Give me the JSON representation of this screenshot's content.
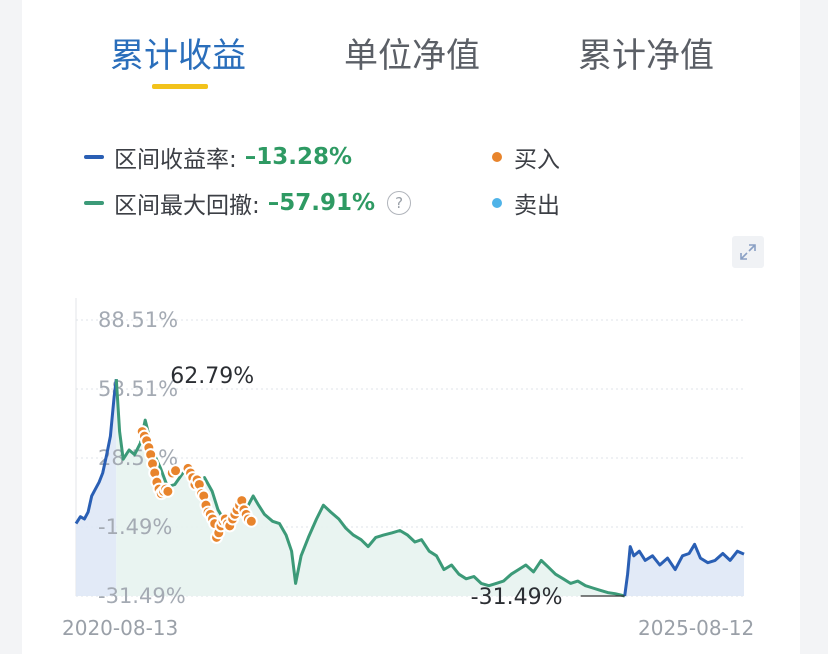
{
  "tabs": [
    {
      "label": "累计收益",
      "active": true
    },
    {
      "label": "单位净值",
      "active": false
    },
    {
      "label": "累计净值",
      "active": false
    }
  ],
  "legend": {
    "return_label": "区间收益率:",
    "return_value": "–13.28%",
    "drawdown_label": "区间最大回撤:",
    "drawdown_value": "–57.91%",
    "help_glyph": "?",
    "buy_label": "买入",
    "sell_label": "卖出"
  },
  "colors": {
    "return_line": "#2a5fb4",
    "drawdown_line": "#3c9a78",
    "return_fill": "#dfe8f6",
    "drawdown_fill": "#e7f3ef",
    "buy": "#e8842c",
    "sell": "#4fb3e8",
    "active_tab": "#2a6ebb",
    "underline": "#f2c21b"
  },
  "chart_data": {
    "type": "line",
    "x_start": "2020-08-13",
    "x_end": "2025-08-12",
    "ylim": [
      -31.49,
      88.51
    ],
    "y_ticks": [
      "88.51%",
      "58.51%",
      "28.51%",
      "-1.49%",
      "-31.49%"
    ],
    "y_tick_values": [
      88.51,
      58.51,
      28.51,
      -1.49,
      -31.49
    ],
    "grid": "horizontal-dotted",
    "annotations": [
      {
        "text": "62.79%",
        "type": "max",
        "x": "2020-12-01",
        "y": 62.79
      },
      {
        "text": "-31.49%",
        "type": "min",
        "x": "2024-09-20",
        "y": -31.49
      }
    ],
    "segments": [
      {
        "name": "",
        "color": "#2a5fb4",
        "points": [
          [
            "2020-08-13",
            0.0
          ],
          [
            "2020-08-25",
            3.0
          ],
          [
            "2020-09-05",
            2.0
          ],
          [
            "2020-09-15",
            5.0
          ],
          [
            "2020-09-25",
            12.0
          ],
          [
            "2020-10-05",
            15.0
          ],
          [
            "2020-10-15",
            18.0
          ],
          [
            "2020-10-25",
            22.0
          ],
          [
            "2020-11-05",
            30.0
          ],
          [
            "2020-11-15",
            38.0
          ],
          [
            "2020-11-25",
            55.0
          ],
          [
            "2020-12-01",
            62.79
          ]
        ]
      },
      {
        "name": "",
        "color": "#3c9a78",
        "points": [
          [
            "2020-12-01",
            62.79
          ],
          [
            "2020-12-10",
            40.0
          ],
          [
            "2020-12-20",
            28.0
          ],
          [
            "2021-01-05",
            32.0
          ],
          [
            "2021-01-20",
            30.0
          ],
          [
            "2021-02-05",
            35.0
          ],
          [
            "2021-02-18",
            45.0
          ],
          [
            "2021-03-01",
            38.0
          ],
          [
            "2021-03-15",
            30.0
          ],
          [
            "2021-04-01",
            24.0
          ],
          [
            "2021-04-20",
            16.0
          ],
          [
            "2021-05-10",
            17.0
          ],
          [
            "2021-06-01",
            22.0
          ],
          [
            "2021-06-20",
            24.0
          ],
          [
            "2021-07-10",
            18.0
          ],
          [
            "2021-07-30",
            20.0
          ],
          [
            "2021-08-20",
            14.0
          ],
          [
            "2021-09-05",
            6.0
          ],
          [
            "2021-09-20",
            2.0
          ],
          [
            "2021-10-10",
            1.0
          ],
          [
            "2021-10-30",
            4.0
          ],
          [
            "2021-11-20",
            6.0
          ],
          [
            "2021-12-10",
            12.0
          ],
          [
            "2021-12-25",
            8.0
          ],
          [
            "2022-01-10",
            4.0
          ],
          [
            "2022-02-01",
            1.0
          ],
          [
            "2022-02-20",
            0.0
          ],
          [
            "2022-03-10",
            -5.0
          ],
          [
            "2022-03-25",
            -12.0
          ],
          [
            "2022-04-05",
            -26.0
          ],
          [
            "2022-04-20",
            -14.0
          ],
          [
            "2022-05-10",
            -6.0
          ],
          [
            "2022-06-01",
            2.0
          ],
          [
            "2022-06-20",
            8.0
          ],
          [
            "2022-07-10",
            5.0
          ],
          [
            "2022-08-01",
            2.0
          ],
          [
            "2022-08-20",
            -2.0
          ],
          [
            "2022-09-10",
            -5.0
          ],
          [
            "2022-10-01",
            -7.0
          ],
          [
            "2022-10-20",
            -10.0
          ],
          [
            "2022-11-10",
            -6.0
          ],
          [
            "2022-12-01",
            -5.0
          ],
          [
            "2022-12-25",
            -4.0
          ],
          [
            "2023-01-15",
            -3.0
          ],
          [
            "2023-02-05",
            -5.0
          ],
          [
            "2023-02-25",
            -8.0
          ],
          [
            "2023-03-15",
            -7.0
          ],
          [
            "2023-04-05",
            -12.0
          ],
          [
            "2023-04-25",
            -14.0
          ],
          [
            "2023-05-15",
            -20.0
          ],
          [
            "2023-06-05",
            -18.0
          ],
          [
            "2023-06-25",
            -22.0
          ],
          [
            "2023-07-15",
            -24.0
          ],
          [
            "2023-08-05",
            -23.0
          ],
          [
            "2023-08-25",
            -26.0
          ],
          [
            "2023-09-15",
            -27.0
          ],
          [
            "2023-10-05",
            -26.0
          ],
          [
            "2023-10-25",
            -25.0
          ],
          [
            "2023-11-15",
            -22.0
          ],
          [
            "2023-12-05",
            -20.0
          ],
          [
            "2023-12-25",
            -18.0
          ],
          [
            "2024-01-15",
            -21.0
          ],
          [
            "2024-02-05",
            -16.0
          ],
          [
            "2024-02-25",
            -19.0
          ],
          [
            "2024-03-15",
            -22.0
          ],
          [
            "2024-04-05",
            -24.0
          ],
          [
            "2024-04-25",
            -26.0
          ],
          [
            "2024-05-15",
            -25.0
          ],
          [
            "2024-06-05",
            -27.0
          ],
          [
            "2024-06-25",
            -28.0
          ],
          [
            "2024-07-15",
            -29.0
          ],
          [
            "2024-08-05",
            -30.0
          ],
          [
            "2024-08-25",
            -30.5
          ],
          [
            "2024-09-20",
            -31.49
          ]
        ]
      },
      {
        "name": "",
        "color": "#2a5fb4",
        "points": [
          [
            "2024-09-20",
            -31.49
          ],
          [
            "2024-09-28",
            -22.0
          ],
          [
            "2024-10-05",
            -10.0
          ],
          [
            "2024-10-15",
            -14.0
          ],
          [
            "2024-10-30",
            -12.0
          ],
          [
            "2024-11-15",
            -16.0
          ],
          [
            "2024-12-05",
            -14.0
          ],
          [
            "2024-12-25",
            -18.0
          ],
          [
            "2025-01-15",
            -15.0
          ],
          [
            "2025-02-05",
            -20.0
          ],
          [
            "2025-02-25",
            -14.0
          ],
          [
            "2025-03-15",
            -13.0
          ],
          [
            "2025-03-30",
            -9.0
          ],
          [
            "2025-04-15",
            -15.0
          ],
          [
            "2025-05-05",
            -17.0
          ],
          [
            "2025-05-25",
            -16.0
          ],
          [
            "2025-06-15",
            -13.0
          ],
          [
            "2025-07-05",
            -16.0
          ],
          [
            "2025-07-25",
            -12.0
          ],
          [
            "2025-08-12",
            -13.28
          ]
        ]
      }
    ],
    "buy_points": [
      [
        "2021-02-10",
        40.0
      ],
      [
        "2021-02-16",
        38.0
      ],
      [
        "2021-02-22",
        36.0
      ],
      [
        "2021-02-28",
        33.0
      ],
      [
        "2021-03-05",
        30.0
      ],
      [
        "2021-03-10",
        26.0
      ],
      [
        "2021-03-16",
        22.0
      ],
      [
        "2021-03-22",
        18.0
      ],
      [
        "2021-03-28",
        15.0
      ],
      [
        "2021-04-03",
        13.0
      ],
      [
        "2021-04-09",
        14.0
      ],
      [
        "2021-04-15",
        15.0
      ],
      [
        "2021-04-21",
        14.0
      ],
      [
        "2021-05-03",
        22.0
      ],
      [
        "2021-05-12",
        23.0
      ],
      [
        "2021-06-15",
        24.0
      ],
      [
        "2021-06-22",
        22.0
      ],
      [
        "2021-06-28",
        20.0
      ],
      [
        "2021-07-04",
        17.0
      ],
      [
        "2021-07-10",
        19.0
      ],
      [
        "2021-07-16",
        17.0
      ],
      [
        "2021-07-22",
        13.0
      ],
      [
        "2021-07-28",
        12.0
      ],
      [
        "2021-08-03",
        8.0
      ],
      [
        "2021-08-09",
        5.0
      ],
      [
        "2021-08-15",
        4.0
      ],
      [
        "2021-08-21",
        2.0
      ],
      [
        "2021-08-27",
        0.0
      ],
      [
        "2021-09-01",
        -6.0
      ],
      [
        "2021-09-07",
        -4.0
      ],
      [
        "2021-09-13",
        -1.0
      ],
      [
        "2021-09-19",
        1.0
      ],
      [
        "2021-09-25",
        2.0
      ],
      [
        "2021-10-01",
        0.0
      ],
      [
        "2021-10-07",
        -1.0
      ],
      [
        "2021-10-15",
        2.0
      ],
      [
        "2021-10-21",
        4.0
      ],
      [
        "2021-10-27",
        6.0
      ],
      [
        "2021-11-03",
        8.0
      ],
      [
        "2021-11-09",
        10.0
      ],
      [
        "2021-11-15",
        6.0
      ],
      [
        "2021-11-21",
        4.0
      ],
      [
        "2021-11-27",
        2.0
      ],
      [
        "2021-12-05",
        1.0
      ]
    ],
    "sell_points": []
  }
}
